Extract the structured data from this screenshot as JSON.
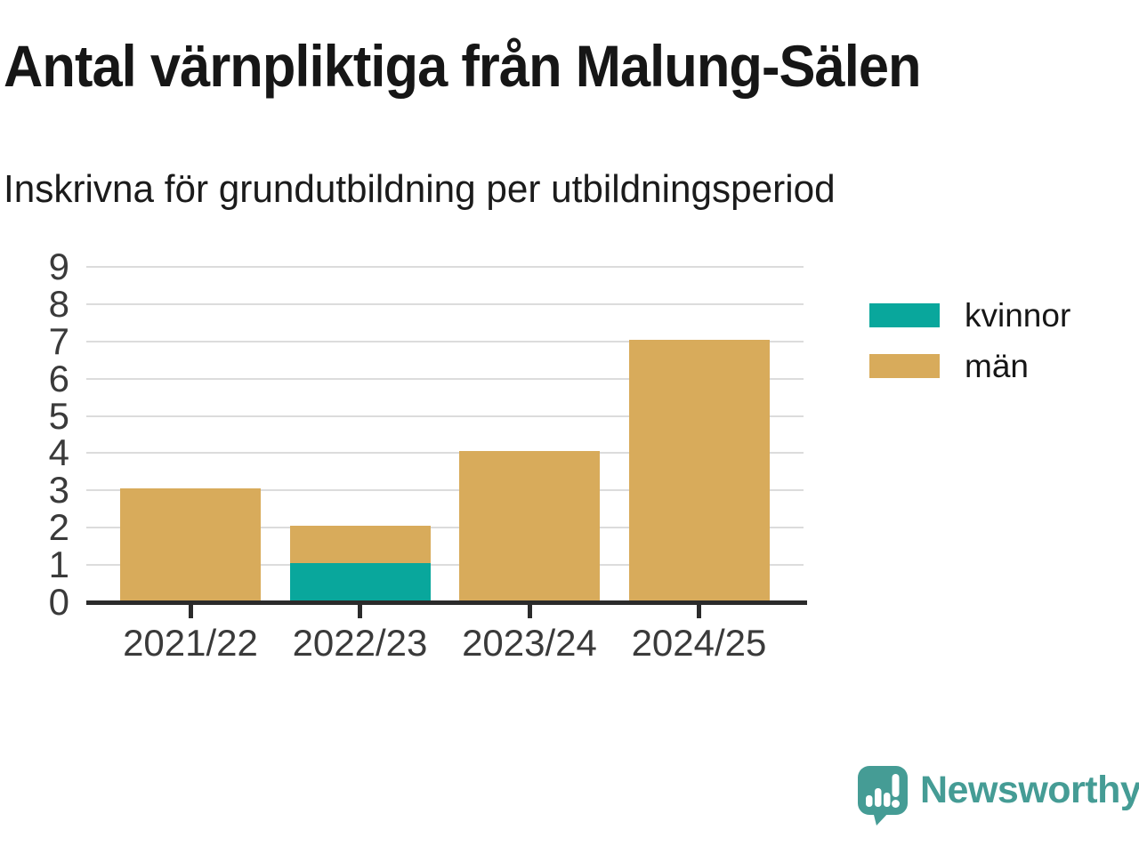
{
  "chart_data": {
    "type": "bar",
    "stacked": true,
    "title": "Antal värnpliktiga från Malung-Sälen",
    "subtitle": "Inskrivna för grundutbildning per utbildningsperiod",
    "categories": [
      "2021/22",
      "2022/23",
      "2023/24",
      "2024/25"
    ],
    "series": [
      {
        "name": "kvinnor",
        "color": "#09a79c",
        "values": [
          0,
          1,
          0,
          0
        ]
      },
      {
        "name": "män",
        "color": "#d8ab5b",
        "values": [
          3,
          1,
          4,
          7
        ]
      }
    ],
    "totals": [
      3,
      2,
      4,
      7
    ],
    "xlabel": "",
    "ylabel": "",
    "ylim": [
      0,
      9
    ],
    "yticks": [
      0,
      1,
      2,
      3,
      4,
      5,
      6,
      7,
      8,
      9
    ],
    "grid": true,
    "legend_position": "right"
  },
  "branding": {
    "name": "Newsworthy",
    "color": "#459c95",
    "icon": "newsworthy-bubble-chart-icon"
  }
}
